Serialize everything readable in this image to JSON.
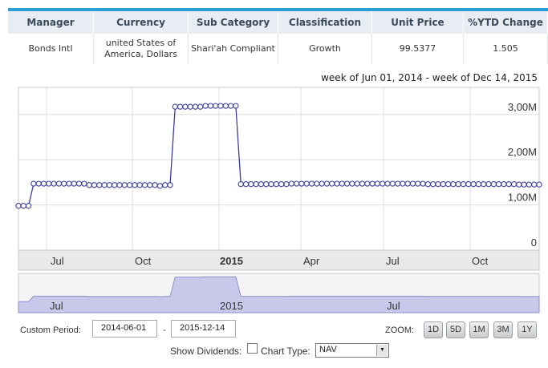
{
  "fund_table": {
    "headers": [
      "Manager",
      "Currency",
      "Sub Category",
      "Classification",
      "Unit Price",
      "%YTD Change"
    ],
    "values": [
      "Bonds Intl",
      "united States of America, Dollars",
      "Shari'ah Compliant",
      "Growth",
      "99.5377",
      "1.505"
    ]
  },
  "period_caption": "week of Jun 01, 2014 - week of Dec 14, 2015",
  "chart_data": {
    "type": "line",
    "x_tick_labels": [
      "Jul",
      "Oct",
      "2015",
      "Apr",
      "Jul",
      "Oct"
    ],
    "y_tick_labels": [
      "0",
      "1,00M",
      "2,00M",
      "3,00M"
    ],
    "ylim": [
      0,
      3.6
    ],
    "series": [
      {
        "values": [
          0.98,
          0.98,
          0.98,
          1.47,
          1.47,
          1.47,
          1.47,
          1.47,
          1.47,
          1.47,
          1.47,
          1.47,
          1.47,
          1.47,
          1.44,
          1.44,
          1.44,
          1.44,
          1.44,
          1.44,
          1.44,
          1.44,
          1.44,
          1.44,
          1.44,
          1.44,
          1.44,
          1.44,
          1.42,
          1.44,
          1.44,
          3.17,
          3.17,
          3.17,
          3.17,
          3.17,
          3.17,
          3.19,
          3.19,
          3.19,
          3.19,
          3.19,
          3.19,
          3.19,
          1.46,
          1.46,
          1.46,
          1.46,
          1.46,
          1.46,
          1.46,
          1.46,
          1.46,
          1.46,
          1.47,
          1.47,
          1.47,
          1.47,
          1.47,
          1.47,
          1.47,
          1.47,
          1.47,
          1.47,
          1.47,
          1.47,
          1.47,
          1.47,
          1.47,
          1.47,
          1.47,
          1.47,
          1.47,
          1.47,
          1.47,
          1.47,
          1.47,
          1.47,
          1.47,
          1.47,
          1.47,
          1.46,
          1.46,
          1.46,
          1.46,
          1.46,
          1.46,
          1.46,
          1.46,
          1.46,
          1.46,
          1.46,
          1.46,
          1.46,
          1.46,
          1.46,
          1.46,
          1.46,
          1.46,
          1.45,
          1.45,
          1.45,
          1.45,
          1.45
        ]
      }
    ],
    "grid": true,
    "navigator": {
      "labels": [
        "Jul",
        "2015",
        "Jul"
      ]
    }
  },
  "controls": {
    "custom_period_label": "Custom Period:",
    "start_date": "2014-06-01",
    "end_date": "2015-12-14",
    "separator": "-",
    "zoom_label": "ZOOM:",
    "zoom_buttons": [
      "1D",
      "5D",
      "1M",
      "3M",
      "1Y"
    ],
    "show_dividends_label": "Show Dividends:",
    "chart_type_label": "Chart Type:",
    "chart_type_value": "NAV"
  },
  "colors": {
    "accent": "#2b9fd6",
    "header_bg": "#e7edf3",
    "series_line": "#3a3d9c",
    "navigator_fill": "#c7c8ea"
  }
}
